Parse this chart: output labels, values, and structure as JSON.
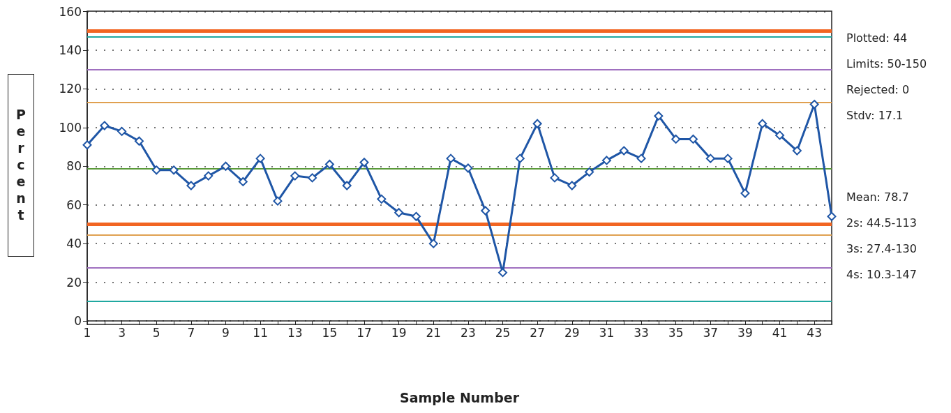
{
  "chart_data": {
    "type": "line",
    "xlabel": "Sample Number",
    "ylabel": "Percent",
    "x": [
      1,
      2,
      3,
      4,
      5,
      6,
      7,
      8,
      9,
      10,
      11,
      12,
      13,
      14,
      15,
      16,
      17,
      18,
      19,
      20,
      21,
      22,
      23,
      24,
      25,
      26,
      27,
      28,
      29,
      30,
      31,
      32,
      33,
      34,
      35,
      36,
      37,
      38,
      39,
      40,
      41,
      42,
      43,
      44
    ],
    "series": [
      {
        "color": "#1f56a6",
        "values": [
          91,
          101,
          98,
          93,
          78,
          78,
          70,
          75,
          80,
          72,
          84,
          62,
          75,
          74,
          81,
          70,
          82,
          63,
          56,
          54,
          40,
          84,
          79,
          57,
          25,
          84,
          102,
          74,
          70,
          77,
          83,
          88,
          84,
          106,
          94,
          94,
          84,
          84,
          66,
          102,
          96,
          88,
          112,
          54
        ]
      }
    ],
    "marker": "diamond",
    "line_style": "solid",
    "grid": "y",
    "xlim": [
      1,
      44
    ],
    "xticks": [
      1,
      {
        "value": 2,
        "label": null
      },
      3,
      {
        "value": 4,
        "label": null
      },
      5,
      {
        "value": 6,
        "label": null
      },
      7,
      {
        "value": 8,
        "label": null
      },
      9,
      {
        "value": 10,
        "label": null
      },
      11,
      {
        "value": 12,
        "label": null
      },
      13,
      {
        "value": 14,
        "label": null
      },
      15,
      {
        "value": 16,
        "label": null
      },
      17,
      {
        "value": 18,
        "label": null
      },
      19,
      {
        "value": 20,
        "label": null
      },
      21,
      {
        "value": 22,
        "label": null
      },
      23,
      {
        "value": 24,
        "label": null
      },
      25,
      {
        "value": 26,
        "label": null
      },
      27,
      {
        "value": 28,
        "label": null
      },
      29,
      {
        "value": 30,
        "label": null
      },
      31,
      {
        "value": 32,
        "label": null
      },
      33,
      {
        "value": 34,
        "label": null
      },
      35,
      {
        "value": 36,
        "label": null
      },
      37,
      {
        "value": 38,
        "label": null
      },
      39,
      {
        "value": 40,
        "label": null
      },
      41,
      {
        "value": 42,
        "label": null
      },
      43,
      {
        "value": 44,
        "label": null
      }
    ],
    "ylim": [
      0,
      160
    ],
    "yticks": [
      0,
      20,
      40,
      60,
      80,
      100,
      120,
      140,
      160
    ],
    "ref_lines": [
      {
        "axis": "y",
        "value": 150,
        "label": null,
        "color": "#f26522",
        "line_style": "solid"
      },
      {
        "axis": "y",
        "value": 50,
        "label": null,
        "color": "#f26522",
        "line_style": "solid"
      },
      {
        "axis": "y",
        "value": 78.7,
        "label": null,
        "color": "#5a9a3a",
        "line_style": "solid"
      },
      {
        "axis": "y",
        "value": 113,
        "label": null,
        "color": "#e0a050",
        "line_style": "solid"
      },
      {
        "axis": "y",
        "value": 44.5,
        "label": null,
        "color": "#e0a050",
        "line_style": "solid"
      },
      {
        "axis": "y",
        "value": 130,
        "label": null,
        "color": "#a070c0",
        "line_style": "solid"
      },
      {
        "axis": "y",
        "value": 27.4,
        "label": null,
        "color": "#a070c0",
        "line_style": "solid"
      },
      {
        "axis": "y",
        "value": 147,
        "label": null,
        "color": "#20a8a0",
        "line_style": "solid"
      },
      {
        "axis": "y",
        "value": 10.3,
        "label": null,
        "color": "#20a8a0",
        "line_style": "solid"
      }
    ],
    "annotations": [
      "Plotted: 44",
      "Limits: 50-150",
      "Rejected: 0",
      "Stdv: 17.1",
      "Mean: 78.7",
      "2s: 44.5-113",
      "3s: 27.4-130",
      "4s: 10.3-147"
    ]
  }
}
